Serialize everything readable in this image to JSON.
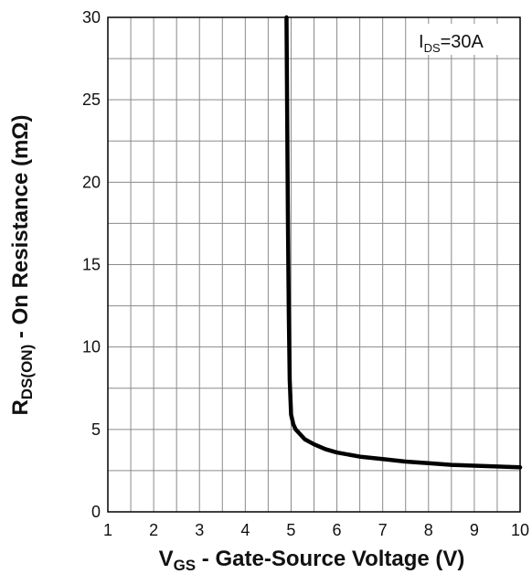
{
  "chart_data": {
    "type": "line",
    "title": "",
    "xlabel": {
      "main": "V",
      "sub": "GS",
      "rest": " - Gate-Source Voltage (V)"
    },
    "ylabel": {
      "main": "R",
      "sub": "DS(ON)",
      "rest": " - On Resistance (mΩ)"
    },
    "annotation": {
      "main": "I",
      "sub": "DS",
      "rest": "=30A"
    },
    "xlim": [
      1,
      10
    ],
    "ylim": [
      0,
      30
    ],
    "x_ticks": [
      1,
      2,
      3,
      4,
      5,
      6,
      7,
      8,
      9,
      10
    ],
    "y_ticks": [
      0,
      5,
      10,
      15,
      20,
      25,
      30
    ],
    "grid": true,
    "grid_x_step": 0.5,
    "grid_y_step": 2.5,
    "series": [
      {
        "x": [
          4.9,
          4.93,
          4.95,
          4.97,
          5.0,
          5.05,
          5.1,
          5.2,
          5.3,
          5.5,
          5.75,
          6.0,
          6.5,
          7.0,
          7.5,
          8.0,
          8.5,
          9.0,
          9.5,
          10.0
        ],
        "y": [
          30,
          18,
          12,
          8.0,
          5.9,
          5.3,
          5.0,
          4.7,
          4.4,
          4.1,
          3.8,
          3.6,
          3.35,
          3.2,
          3.05,
          2.95,
          2.85,
          2.8,
          2.75,
          2.7
        ]
      }
    ],
    "line_color": "#000000"
  }
}
